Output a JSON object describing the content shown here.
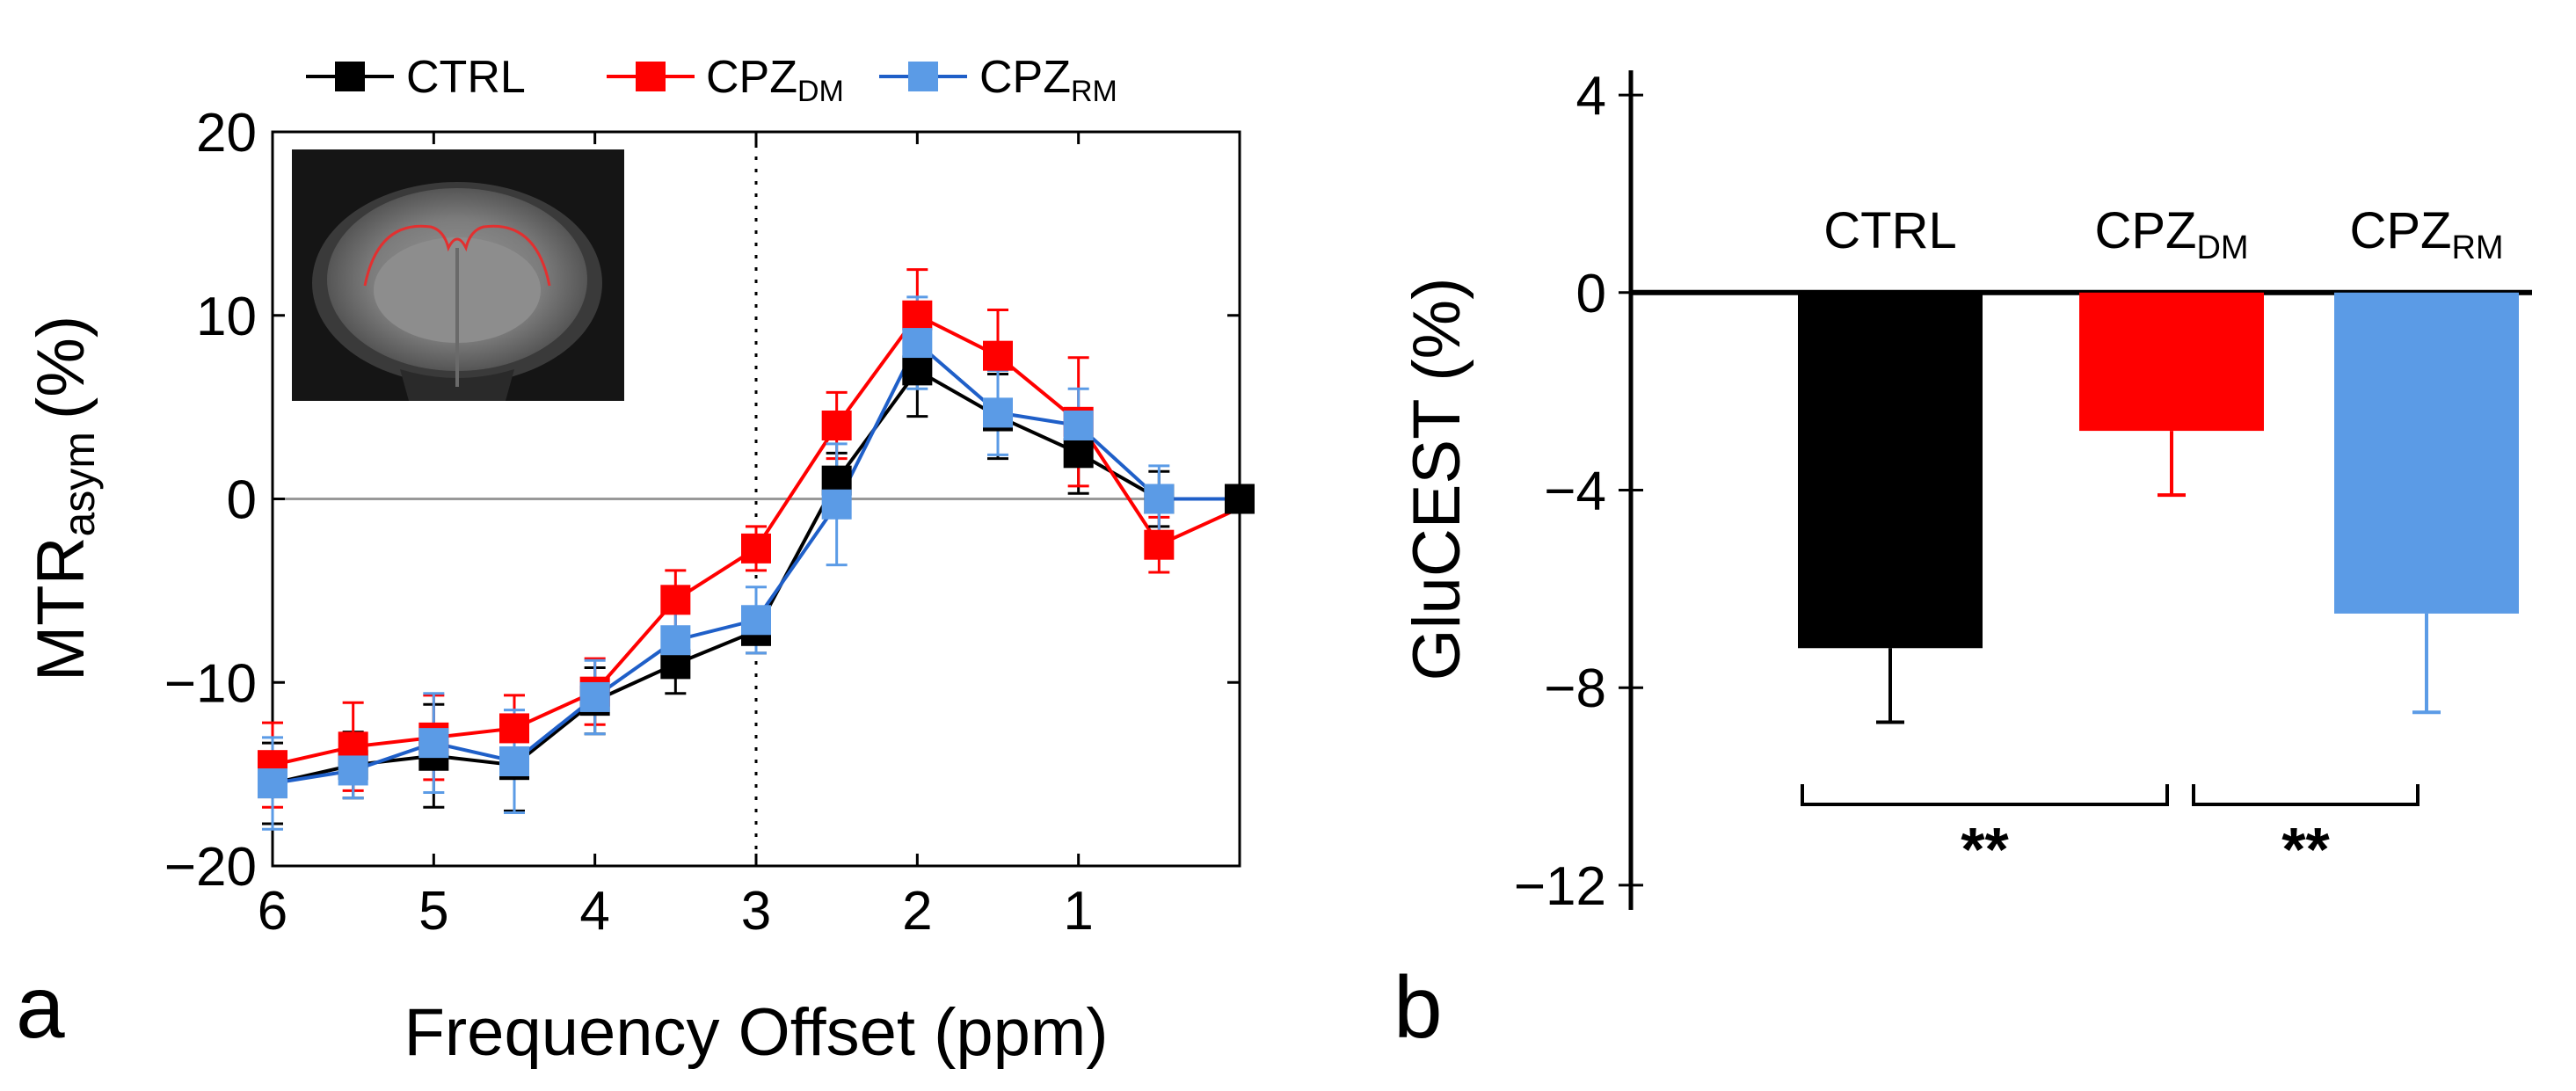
{
  "panels": {
    "a": {
      "letter": "a"
    },
    "b": {
      "letter": "b"
    }
  },
  "colors": {
    "ctrl": "#000000",
    "cpz_dm": "#ff0000",
    "cpz_rm": "#5b9be6",
    "cpz_rm_line": "#1f5fc8",
    "zero_line": "#999999"
  },
  "chart_data": [
    {
      "type": "line",
      "panel": "a",
      "title": "",
      "xlabel": "Frequency Offset (ppm)",
      "ylabel_main": "MTR",
      "ylabel_sub": "asym",
      "ylabel_unit": "(%)",
      "xlim": [
        6.0,
        0.0
      ],
      "ylim": [
        -20,
        20
      ],
      "x_ticks": [
        6,
        5,
        4,
        3,
        2,
        1
      ],
      "y_ticks": [
        20,
        10,
        0,
        -10,
        -20
      ],
      "y_tick_labels": [
        "20",
        "10",
        "0",
        "−10",
        "−20"
      ],
      "vertical_marker_x": 3,
      "x": [
        6.0,
        5.5,
        5.0,
        4.5,
        4.0,
        3.5,
        3.0,
        2.5,
        2.0,
        1.5,
        1.0,
        0.5,
        0.0
      ],
      "legend": [
        {
          "main": "CTRL",
          "sub": ""
        },
        {
          "main": "CPZ",
          "sub": "DM"
        },
        {
          "main": "CPZ",
          "sub": "RM"
        }
      ],
      "inset": "coronal mouse brain MRI with corpus callosum outlined in red",
      "series": [
        {
          "name": "CTRL",
          "color": "#000000",
          "values": [
            -15.5,
            -14.5,
            -14.0,
            -14.5,
            -11.0,
            -9.0,
            -7.2,
            1.0,
            7.0,
            4.5,
            2.5,
            0.0,
            0.0
          ],
          "errors": [
            2.2,
            1.8,
            2.8,
            2.5,
            1.8,
            1.6,
            1.2,
            1.5,
            2.5,
            2.3,
            2.2,
            1.5,
            0
          ],
          "markers": true
        },
        {
          "name": "CPZ_DM",
          "color": "#ff0000",
          "values": [
            -14.5,
            -13.5,
            -13.0,
            -12.5,
            -10.5,
            -5.5,
            -2.7,
            4.0,
            10.0,
            7.8,
            4.2,
            -2.5,
            -0.5
          ],
          "errors": [
            2.3,
            2.4,
            2.3,
            1.8,
            1.8,
            1.6,
            1.2,
            1.8,
            2.5,
            2.5,
            3.5,
            1.5,
            0
          ],
          "markers": [
            true,
            true,
            true,
            true,
            true,
            true,
            true,
            true,
            true,
            true,
            true,
            true,
            false
          ]
        },
        {
          "name": "CPZ_RM",
          "color": "#5b9be6",
          "values": [
            -15.5,
            -14.8,
            -13.3,
            -14.3,
            -10.8,
            -7.7,
            -6.6,
            -0.3,
            8.5,
            4.7,
            4.0,
            0.0,
            0.0
          ],
          "errors": [
            2.5,
            1.5,
            2.7,
            2.8,
            2.0,
            1.9,
            1.8,
            3.3,
            2.5,
            2.3,
            2.0,
            1.8,
            0
          ],
          "markers": [
            true,
            true,
            true,
            true,
            true,
            true,
            true,
            true,
            true,
            true,
            true,
            true,
            false
          ]
        }
      ]
    },
    {
      "type": "bar",
      "panel": "b",
      "ylabel": "GluCEST (%)",
      "ylim": [
        -12.5,
        4.5
      ],
      "y_ticks": [
        4,
        0,
        -4,
        -8,
        -12
      ],
      "y_tick_labels": [
        "4",
        "0",
        "−4",
        "−8",
        "−12"
      ],
      "categories": [
        {
          "main": "CTRL",
          "sub": ""
        },
        {
          "main": "CPZ",
          "sub": "DM"
        },
        {
          "main": "CPZ",
          "sub": "RM"
        }
      ],
      "values": [
        -7.2,
        -2.8,
        -6.5
      ],
      "errors": [
        1.5,
        1.3,
        2.0
      ],
      "bar_colors": [
        "#000000",
        "#ff0000",
        "#5b9be6"
      ],
      "significance": [
        {
          "from": 0,
          "to": 1,
          "label": "**"
        },
        {
          "from": 1,
          "to": 2,
          "label": "**"
        }
      ]
    }
  ]
}
